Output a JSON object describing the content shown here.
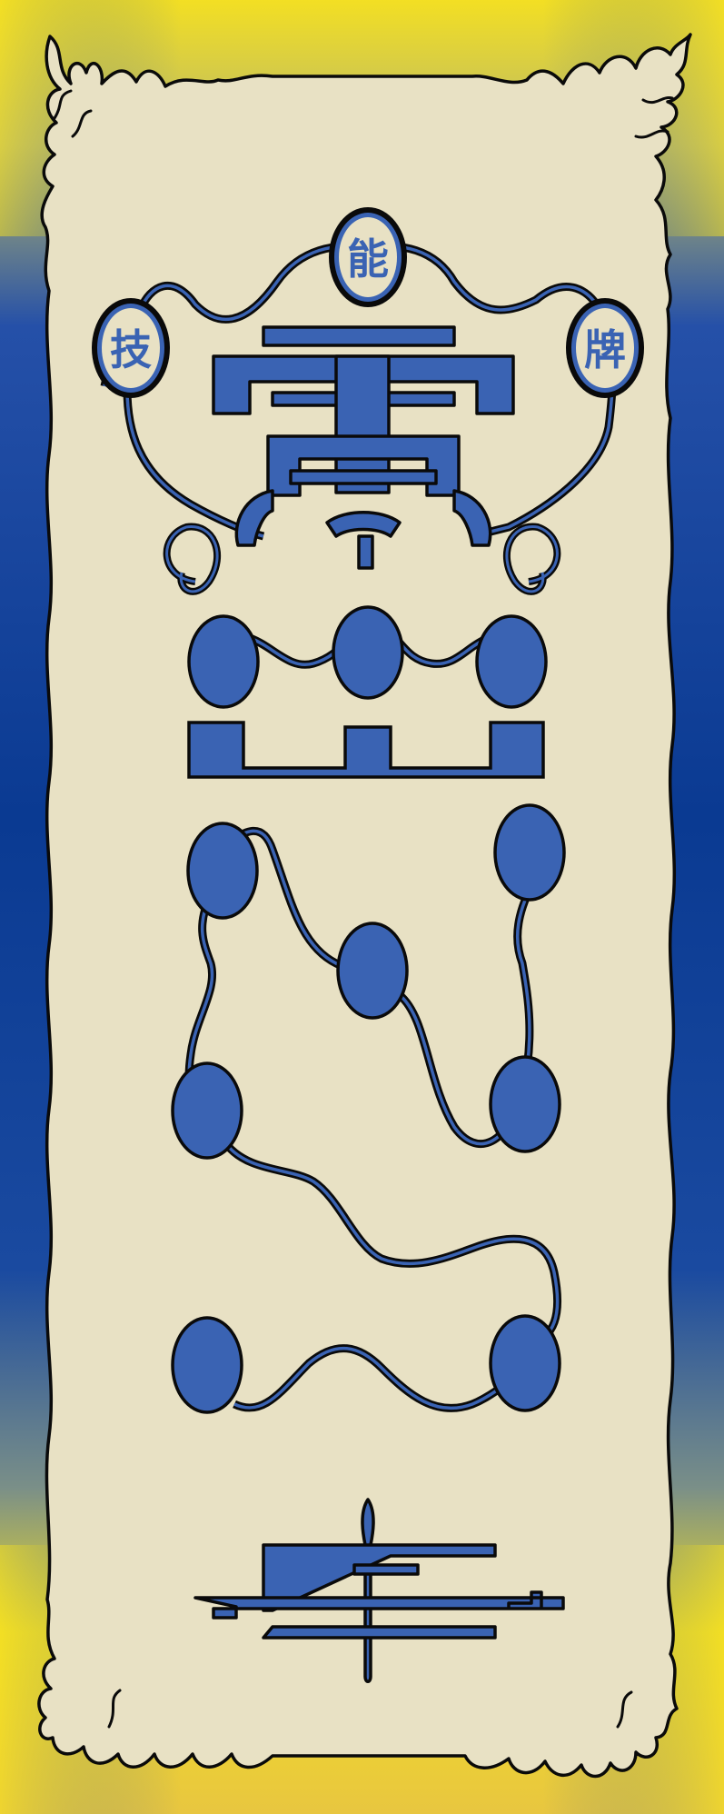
{
  "talisman": {
    "seals": [
      {
        "id": "left",
        "char": "技"
      },
      {
        "id": "top",
        "char": "能"
      },
      {
        "id": "right",
        "char": "牌"
      }
    ]
  },
  "colors": {
    "border_blue": "#1f4aa0",
    "border_blue_dark": "#0d3a8f",
    "border_yellow": "#f3df23",
    "parchment": "#e8e1c4",
    "ink_blue": "#3a63b3",
    "outline": "#0a0a0a"
  },
  "icons": {
    "main_glyph": "thunder-rune-icon",
    "swirl": "cloud-swirl-icon",
    "bottom": "sword-rune-icon"
  }
}
